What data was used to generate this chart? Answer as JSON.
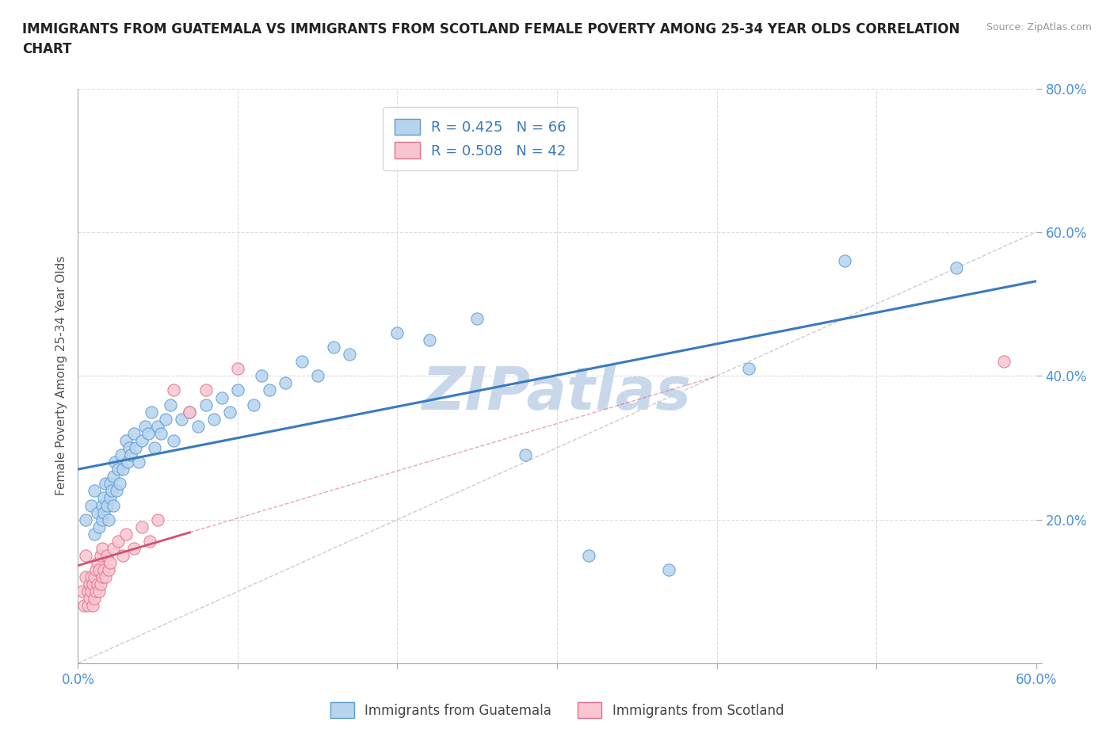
{
  "title": "IMMIGRANTS FROM GUATEMALA VS IMMIGRANTS FROM SCOTLAND FEMALE POVERTY AMONG 25-34 YEAR OLDS CORRELATION\nCHART",
  "source_text": "Source: ZipAtlas.com",
  "ylabel": "Female Poverty Among 25-34 Year Olds",
  "xlim": [
    0.0,
    0.6
  ],
  "ylim": [
    0.0,
    0.8
  ],
  "guatemala_R": 0.425,
  "guatemala_N": 66,
  "scotland_R": 0.508,
  "scotland_N": 42,
  "guatemala_color": "#b8d4ed",
  "guatemala_edge_color": "#5b9bd5",
  "scotland_color": "#f9c6d0",
  "scotland_edge_color": "#e07090",
  "guatemala_line_color": "#3a7abf",
  "scotland_line_color": "#d45070",
  "ref_line_color": "#cccccc",
  "watermark_color": "#c8d8ea",
  "background_color": "#ffffff",
  "legend_label_1": "Immigrants from Guatemala",
  "legend_label_2": "Immigrants from Scotland",
  "guatemala_x": [
    0.005,
    0.008,
    0.01,
    0.01,
    0.012,
    0.013,
    0.015,
    0.015,
    0.016,
    0.016,
    0.017,
    0.018,
    0.019,
    0.02,
    0.02,
    0.021,
    0.022,
    0.022,
    0.023,
    0.024,
    0.025,
    0.026,
    0.027,
    0.028,
    0.03,
    0.031,
    0.032,
    0.033,
    0.035,
    0.036,
    0.038,
    0.04,
    0.042,
    0.044,
    0.046,
    0.048,
    0.05,
    0.052,
    0.055,
    0.058,
    0.06,
    0.065,
    0.07,
    0.075,
    0.08,
    0.085,
    0.09,
    0.095,
    0.1,
    0.11,
    0.115,
    0.12,
    0.13,
    0.14,
    0.15,
    0.16,
    0.17,
    0.2,
    0.22,
    0.25,
    0.28,
    0.32,
    0.37,
    0.42,
    0.48,
    0.55
  ],
  "guatemala_y": [
    0.2,
    0.22,
    0.18,
    0.24,
    0.21,
    0.19,
    0.22,
    0.2,
    0.23,
    0.21,
    0.25,
    0.22,
    0.2,
    0.23,
    0.25,
    0.24,
    0.26,
    0.22,
    0.28,
    0.24,
    0.27,
    0.25,
    0.29,
    0.27,
    0.31,
    0.28,
    0.3,
    0.29,
    0.32,
    0.3,
    0.28,
    0.31,
    0.33,
    0.32,
    0.35,
    0.3,
    0.33,
    0.32,
    0.34,
    0.36,
    0.31,
    0.34,
    0.35,
    0.33,
    0.36,
    0.34,
    0.37,
    0.35,
    0.38,
    0.36,
    0.4,
    0.38,
    0.39,
    0.42,
    0.4,
    0.44,
    0.43,
    0.46,
    0.45,
    0.48,
    0.29,
    0.15,
    0.13,
    0.41,
    0.56,
    0.55
  ],
  "scotland_x": [
    0.003,
    0.004,
    0.005,
    0.005,
    0.006,
    0.006,
    0.007,
    0.007,
    0.008,
    0.008,
    0.009,
    0.009,
    0.01,
    0.01,
    0.011,
    0.011,
    0.012,
    0.012,
    0.013,
    0.013,
    0.014,
    0.014,
    0.015,
    0.015,
    0.016,
    0.017,
    0.018,
    0.019,
    0.02,
    0.022,
    0.025,
    0.028,
    0.03,
    0.035,
    0.04,
    0.045,
    0.05,
    0.06,
    0.07,
    0.08,
    0.1,
    0.58
  ],
  "scotland_y": [
    0.1,
    0.08,
    0.12,
    0.15,
    0.08,
    0.1,
    0.09,
    0.11,
    0.1,
    0.12,
    0.08,
    0.11,
    0.09,
    0.12,
    0.1,
    0.13,
    0.11,
    0.14,
    0.1,
    0.13,
    0.11,
    0.15,
    0.12,
    0.16,
    0.13,
    0.12,
    0.15,
    0.13,
    0.14,
    0.16,
    0.17,
    0.15,
    0.18,
    0.16,
    0.19,
    0.17,
    0.2,
    0.38,
    0.35,
    0.38,
    0.41,
    0.42
  ]
}
